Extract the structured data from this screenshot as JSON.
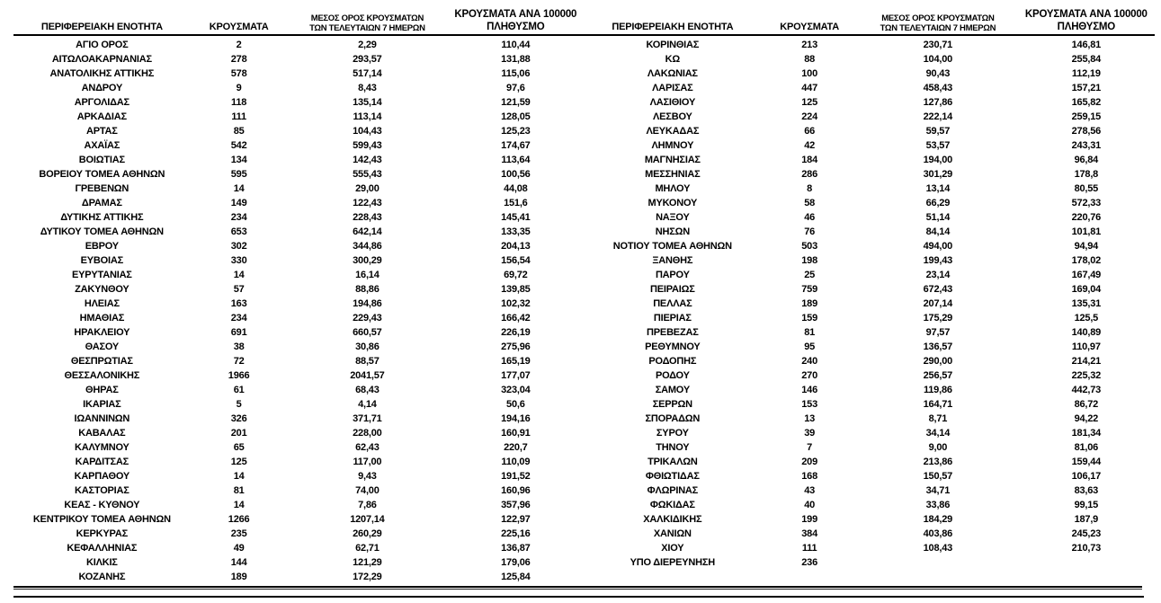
{
  "page": {
    "background": "#ffffff",
    "text_color": "#000000"
  },
  "headers": {
    "region": "ΠΕΡΙΦΕΡΕΙΑΚΗ ΕΝΟΤΗΤΑ",
    "cases": "ΚΡΟΥΣΜΑΤΑ",
    "avg7_line1": "ΜΕΣΟΣ ΟΡΟΣ ΚΡΟΥΣΜΑΤΩΝ",
    "avg7_line2": "ΤΩΝ ΤΕΛΕΥΤΑΙΩΝ 7 ΗΜΕΡΩΝ",
    "per100k_line1": "ΚΡΟΥΣΜΑΤΑ ΑΝΑ 100000",
    "per100k_line2": "ΠΛΗΘΥΣΜΟ"
  },
  "left_table": {
    "rows": [
      [
        "ΑΓΙΟ ΟΡΟΣ",
        "2",
        "2,29",
        "110,44"
      ],
      [
        "ΑΙΤΩΛΟΑΚΑΡΝΑΝΙΑΣ",
        "278",
        "293,57",
        "131,88"
      ],
      [
        "ΑΝΑΤΟΛΙΚΗΣ ΑΤΤΙΚΗΣ",
        "578",
        "517,14",
        "115,06"
      ],
      [
        "ΑΝΔΡΟΥ",
        "9",
        "8,43",
        "97,6"
      ],
      [
        "ΑΡΓΟΛΙΔΑΣ",
        "118",
        "135,14",
        "121,59"
      ],
      [
        "ΑΡΚΑΔΙΑΣ",
        "111",
        "113,14",
        "128,05"
      ],
      [
        "ΑΡΤΑΣ",
        "85",
        "104,43",
        "125,23"
      ],
      [
        "ΑΧΑΪΑΣ",
        "542",
        "599,43",
        "174,67"
      ],
      [
        "ΒΟΙΩΤΙΑΣ",
        "134",
        "142,43",
        "113,64"
      ],
      [
        "ΒΟΡΕΙΟΥ ΤΟΜΕΑ ΑΘΗΝΩΝ",
        "595",
        "555,43",
        "100,56"
      ],
      [
        "ΓΡΕΒΕΝΩΝ",
        "14",
        "29,00",
        "44,08"
      ],
      [
        "ΔΡΑΜΑΣ",
        "149",
        "122,43",
        "151,6"
      ],
      [
        "ΔΥΤΙΚΗΣ ΑΤΤΙΚΗΣ",
        "234",
        "228,43",
        "145,41"
      ],
      [
        "ΔΥΤΙΚΟΥ ΤΟΜΕΑ ΑΘΗΝΩΝ",
        "653",
        "642,14",
        "133,35"
      ],
      [
        "ΕΒΡΟΥ",
        "302",
        "344,86",
        "204,13"
      ],
      [
        "ΕΥΒΟΙΑΣ",
        "330",
        "300,29",
        "156,54"
      ],
      [
        "ΕΥΡΥΤΑΝΙΑΣ",
        "14",
        "16,14",
        "69,72"
      ],
      [
        "ΖΑΚΥΝΘΟΥ",
        "57",
        "88,86",
        "139,85"
      ],
      [
        "ΗΛΕΙΑΣ",
        "163",
        "194,86",
        "102,32"
      ],
      [
        "ΗΜΑΘΙΑΣ",
        "234",
        "229,43",
        "166,42"
      ],
      [
        "ΗΡΑΚΛΕΙΟΥ",
        "691",
        "660,57",
        "226,19"
      ],
      [
        "ΘΑΣΟΥ",
        "38",
        "30,86",
        "275,96"
      ],
      [
        "ΘΕΣΠΡΩΤΙΑΣ",
        "72",
        "88,57",
        "165,19"
      ],
      [
        "ΘΕΣΣΑΛΟΝΙΚΗΣ",
        "1966",
        "2041,57",
        "177,07"
      ],
      [
        "ΘΗΡΑΣ",
        "61",
        "68,43",
        "323,04"
      ],
      [
        "ΙΚΑΡΙΑΣ",
        "5",
        "4,14",
        "50,6"
      ],
      [
        "ΙΩΑΝΝΙΝΩΝ",
        "326",
        "371,71",
        "194,16"
      ],
      [
        "ΚΑΒΑΛΑΣ",
        "201",
        "228,00",
        "160,91"
      ],
      [
        "ΚΑΛΥΜΝΟΥ",
        "65",
        "62,43",
        "220,7"
      ],
      [
        "ΚΑΡΔΙΤΣΑΣ",
        "125",
        "117,00",
        "110,09"
      ],
      [
        "ΚΑΡΠΑΘΟΥ",
        "14",
        "9,43",
        "191,52"
      ],
      [
        "ΚΑΣΤΟΡΙΑΣ",
        "81",
        "74,00",
        "160,96"
      ],
      [
        "ΚΕΑΣ - ΚΥΘΝΟΥ",
        "14",
        "7,86",
        "357,96"
      ],
      [
        "ΚΕΝΤΡΙΚΟΥ ΤΟΜΕΑ ΑΘΗΝΩΝ",
        "1266",
        "1207,14",
        "122,97"
      ],
      [
        "ΚΕΡΚΥΡΑΣ",
        "235",
        "260,29",
        "225,16"
      ],
      [
        "ΚΕΦΑΛΛΗΝΙΑΣ",
        "49",
        "62,71",
        "136,87"
      ],
      [
        "ΚΙΛΚΙΣ",
        "144",
        "121,29",
        "179,06"
      ],
      [
        "ΚΟΖΑΝΗΣ",
        "189",
        "172,29",
        "125,84"
      ]
    ]
  },
  "right_table": {
    "rows": [
      [
        "ΚΟΡΙΝΘΙΑΣ",
        "213",
        "230,71",
        "146,81"
      ],
      [
        "ΚΩ",
        "88",
        "104,00",
        "255,84"
      ],
      [
        "ΛΑΚΩΝΙΑΣ",
        "100",
        "90,43",
        "112,19"
      ],
      [
        "ΛΑΡΙΣΑΣ",
        "447",
        "458,43",
        "157,21"
      ],
      [
        "ΛΑΣΙΘΙΟΥ",
        "125",
        "127,86",
        "165,82"
      ],
      [
        "ΛΕΣΒΟΥ",
        "224",
        "222,14",
        "259,15"
      ],
      [
        "ΛΕΥΚΑΔΑΣ",
        "66",
        "59,57",
        "278,56"
      ],
      [
        "ΛΗΜΝΟΥ",
        "42",
        "53,57",
        "243,31"
      ],
      [
        "ΜΑΓΝΗΣΙΑΣ",
        "184",
        "194,00",
        "96,84"
      ],
      [
        "ΜΕΣΣΗΝΙΑΣ",
        "286",
        "301,29",
        "178,8"
      ],
      [
        "ΜΗΛΟΥ",
        "8",
        "13,14",
        "80,55"
      ],
      [
        "ΜΥΚΟΝΟΥ",
        "58",
        "66,29",
        "572,33"
      ],
      [
        "ΝΑΞΟΥ",
        "46",
        "51,14",
        "220,76"
      ],
      [
        "ΝΗΣΩΝ",
        "76",
        "84,14",
        "101,81"
      ],
      [
        "ΝΟΤΙΟΥ ΤΟΜΕΑ ΑΘΗΝΩΝ",
        "503",
        "494,00",
        "94,94"
      ],
      [
        "ΞΑΝΘΗΣ",
        "198",
        "199,43",
        "178,02"
      ],
      [
        "ΠΑΡΟΥ",
        "25",
        "23,14",
        "167,49"
      ],
      [
        "ΠΕΙΡΑΙΩΣ",
        "759",
        "672,43",
        "169,04"
      ],
      [
        "ΠΕΛΛΑΣ",
        "189",
        "207,14",
        "135,31"
      ],
      [
        "ΠΙΕΡΙΑΣ",
        "159",
        "175,29",
        "125,5"
      ],
      [
        "ΠΡΕΒΕΖΑΣ",
        "81",
        "97,57",
        "140,89"
      ],
      [
        "ΡΕΘΥΜΝΟΥ",
        "95",
        "136,57",
        "110,97"
      ],
      [
        "ΡΟΔΟΠΗΣ",
        "240",
        "290,00",
        "214,21"
      ],
      [
        "ΡΟΔΟΥ",
        "270",
        "256,57",
        "225,32"
      ],
      [
        "ΣΑΜΟΥ",
        "146",
        "119,86",
        "442,73"
      ],
      [
        "ΣΕΡΡΩΝ",
        "153",
        "164,71",
        "86,72"
      ],
      [
        "ΣΠΟΡΑΔΩΝ",
        "13",
        "8,71",
        "94,22"
      ],
      [
        "ΣΥΡΟΥ",
        "39",
        "34,14",
        "181,34"
      ],
      [
        "ΤΗΝΟΥ",
        "7",
        "9,00",
        "81,06"
      ],
      [
        "ΤΡΙΚΑΛΩΝ",
        "209",
        "213,86",
        "159,44"
      ],
      [
        "ΦΘΙΩΤΙΔΑΣ",
        "168",
        "150,57",
        "106,17"
      ],
      [
        "ΦΛΩΡΙΝΑΣ",
        "43",
        "34,71",
        "83,63"
      ],
      [
        "ΦΩΚΙΔΑΣ",
        "40",
        "33,86",
        "99,15"
      ],
      [
        "ΧΑΛΚΙΔΙΚΗΣ",
        "199",
        "184,29",
        "187,9"
      ],
      [
        "ΧΑΝΙΩΝ",
        "384",
        "403,86",
        "245,23"
      ],
      [
        "ΧΙΟΥ",
        "111",
        "108,43",
        "210,73"
      ],
      [
        "ΥΠΟ ΔΙΕΡΕΥΝΗΣΗ",
        "236",
        "",
        ""
      ]
    ]
  }
}
